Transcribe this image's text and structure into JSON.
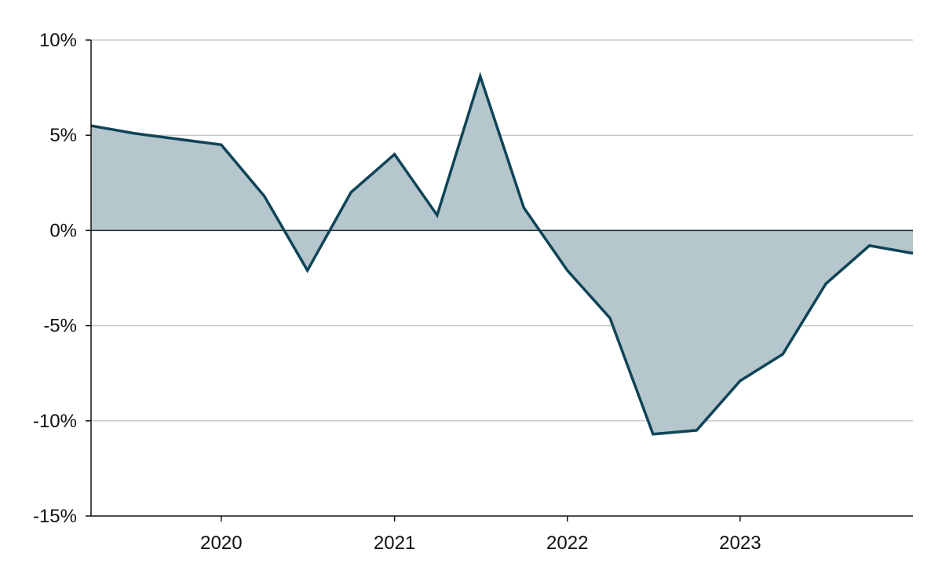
{
  "chart_data": {
    "type": "area",
    "title": "",
    "xlabel": "",
    "ylabel": "",
    "grid": true,
    "legend": "none",
    "colors": {
      "line": "#0f4457",
      "fill": "#b5c6cc",
      "zero_line": "#1f2a30",
      "grid": "#c9c9c9"
    },
    "ylim": [
      -15,
      10
    ],
    "yticks": [
      10,
      5,
      0,
      -5,
      -10,
      -15
    ],
    "ytick_labels": [
      "10%",
      "5%",
      "0%",
      "-5%",
      "-10%",
      "-15%"
    ],
    "xlim": [
      "2019-03-31",
      "2023-12-31"
    ],
    "xticks": [
      "2019-12-31",
      "2020-12-31",
      "2021-12-31",
      "2022-12-31"
    ],
    "xtick_labels": [
      "2020",
      "2021",
      "2022",
      "2023"
    ],
    "series": [
      {
        "x": [
          "2019-03-31",
          "2019-06-30",
          "2019-12-31",
          "2020-03-31",
          "2020-06-30",
          "2020-09-30",
          "2020-12-31",
          "2021-03-31",
          "2021-06-30",
          "2021-09-30",
          "2021-12-31",
          "2022-03-31",
          "2022-06-30",
          "2022-09-30",
          "2022-12-31",
          "2023-03-31",
          "2023-06-30",
          "2023-09-30",
          "2023-12-31"
        ],
        "values": [
          5.5,
          5.1,
          4.5,
          1.8,
          -2.1,
          2.0,
          4.0,
          0.8,
          8.1,
          1.2,
          -2.1,
          -4.6,
          -10.7,
          -10.5,
          -7.9,
          -6.5,
          -2.8,
          -0.8,
          -1.2
        ]
      }
    ]
  }
}
